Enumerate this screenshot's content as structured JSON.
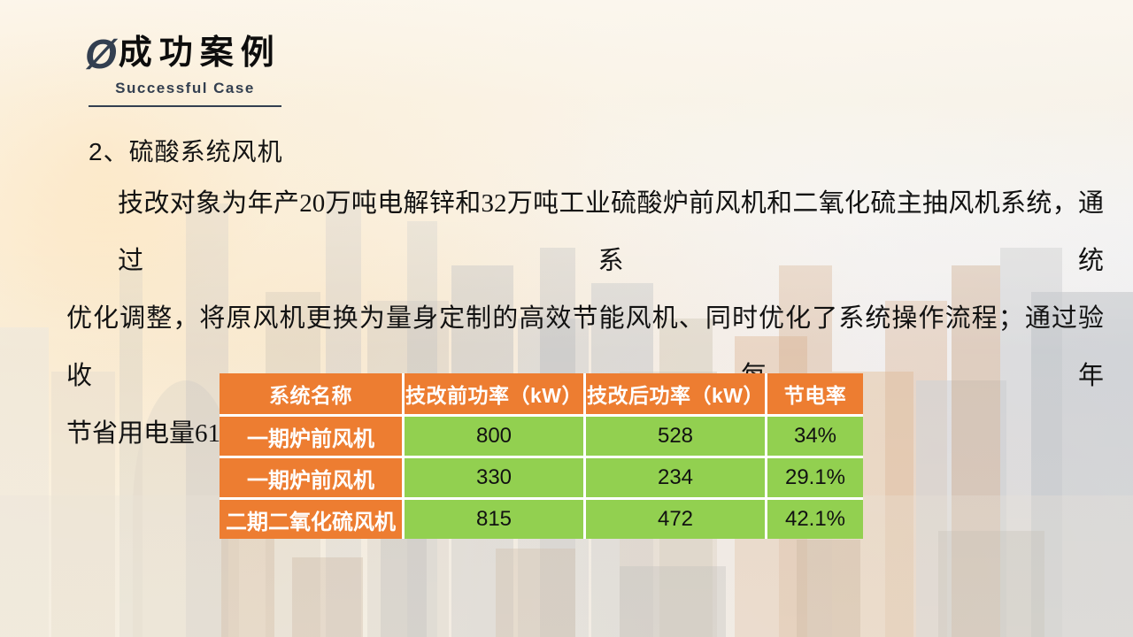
{
  "slide": {
    "header": {
      "icon": "Ø",
      "title": "成功案例",
      "subtitle": "Successful Case"
    },
    "section_heading": "2、硫酸系统风机",
    "paragraph_lines": [
      "技改对象为年产20万吨电解锌和32万吨工业硫酸炉前风机和二氧化硫主抽风机系统，通过系统",
      "优化调整，将原风机更换为量身定制的高效节能风机、同时优化了系统操作流程；通过验收，每年",
      "节省用电量615万度，大降低了生产成本。"
    ],
    "table": {
      "headers": [
        "系统名称",
        "技改前功率（kW）",
        "技改后功率（kW）",
        "节电率"
      ],
      "rows": [
        {
          "label": "一期炉前风机",
          "before": "800",
          "after": "528",
          "saving": "34%"
        },
        {
          "label": "一期炉前风机",
          "before": "330",
          "after": "234",
          "saving": "29.1%"
        },
        {
          "label": "二期二氧化硫风机",
          "before": "815",
          "after": "472",
          "saving": "42.1%"
        }
      ]
    },
    "colors": {
      "accent_orange": "#ED7D31",
      "cell_green": "#92D050",
      "title_navy": "#333F50"
    }
  }
}
